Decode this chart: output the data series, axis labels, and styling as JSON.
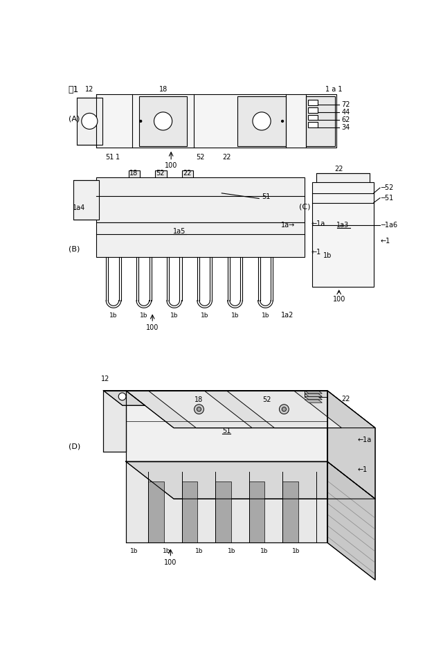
{
  "bg": "#ffffff",
  "lc": "#000000",
  "lw": 0.8,
  "title": "図1",
  "A_label": "(A)",
  "B_label": "(B)",
  "C_label": "(C)",
  "D_label": "(D)"
}
